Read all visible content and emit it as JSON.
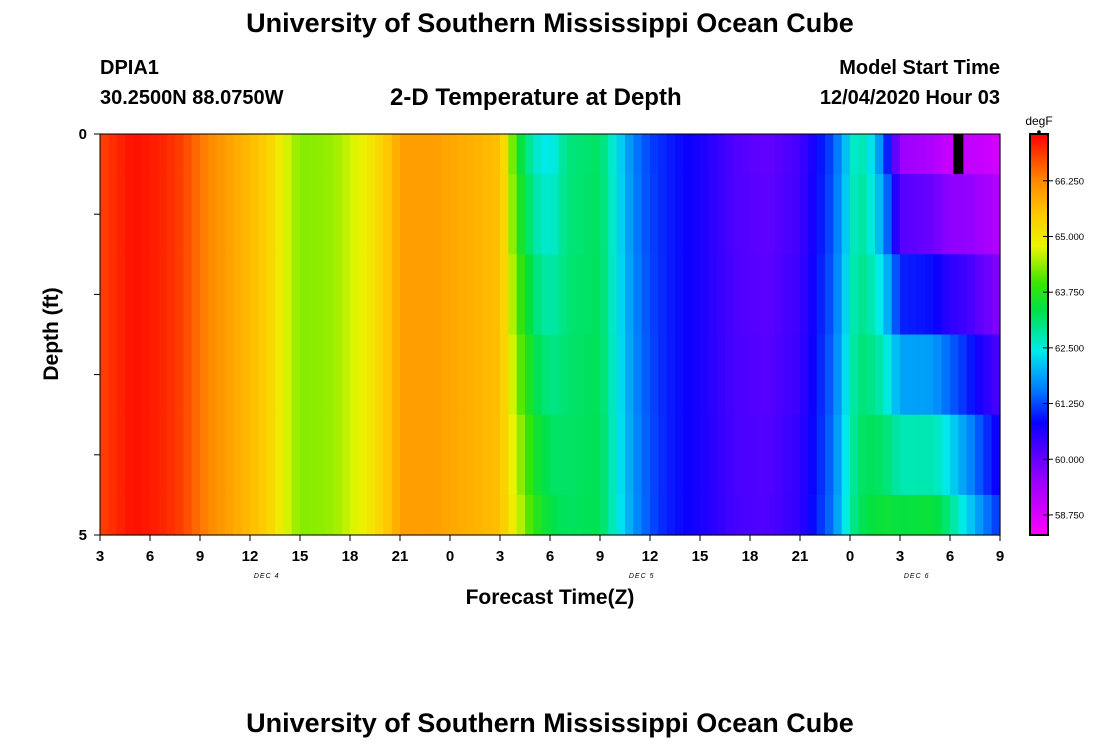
{
  "header": {
    "title": "University of Southern Mississippi Ocean Cube",
    "station_id": "DPIA1",
    "station_coords": "30.2500N 88.0750W",
    "plot_title": "2-D Temperature at Depth",
    "start_label": "Model Start Time",
    "start_value": "12/04/2020 Hour 03"
  },
  "footer": {
    "title": "University of Southern Mississippi Ocean Cube"
  },
  "chart_data": {
    "type": "heatmap",
    "title": "2-D Temperature at Depth",
    "xlabel": "Forecast Time(Z)",
    "ylabel": "Depth (ft)",
    "x_unit": "forecast hour from model start (12/04/2020 03Z)",
    "xlim": [
      0,
      54
    ],
    "ylim": [
      0,
      5
    ],
    "x_ticks": [
      {
        "hour": 0,
        "label": "3"
      },
      {
        "hour": 3,
        "label": "6"
      },
      {
        "hour": 6,
        "label": "9"
      },
      {
        "hour": 9,
        "label": "12"
      },
      {
        "hour": 12,
        "label": "15"
      },
      {
        "hour": 15,
        "label": "18"
      },
      {
        "hour": 18,
        "label": "21"
      },
      {
        "hour": 21,
        "label": "0"
      },
      {
        "hour": 24,
        "label": "3"
      },
      {
        "hour": 27,
        "label": "6"
      },
      {
        "hour": 30,
        "label": "9"
      },
      {
        "hour": 33,
        "label": "12"
      },
      {
        "hour": 36,
        "label": "15"
      },
      {
        "hour": 39,
        "label": "18"
      },
      {
        "hour": 42,
        "label": "21"
      },
      {
        "hour": 45,
        "label": "0"
      },
      {
        "hour": 48,
        "label": "3"
      },
      {
        "hour": 51,
        "label": "6"
      },
      {
        "hour": 54,
        "label": "9"
      }
    ],
    "date_labels": [
      {
        "hour": 10,
        "label": "DEC 4"
      },
      {
        "hour": 32.5,
        "label": "DEC 5"
      },
      {
        "hour": 49,
        "label": "DEC 6"
      }
    ],
    "y_ticks": [
      {
        "depth": 0,
        "label": "0"
      },
      {
        "depth": 1,
        "label": ""
      },
      {
        "depth": 2,
        "label": ""
      },
      {
        "depth": 3,
        "label": ""
      },
      {
        "depth": 4,
        "label": ""
      },
      {
        "depth": 5,
        "label": "5"
      }
    ],
    "colorbar": {
      "unit": "degF",
      "min": 58.3,
      "max": 67.3,
      "ticks": [
        66.25,
        65.0,
        63.75,
        62.5,
        61.25,
        60.0,
        58.75
      ],
      "tick_labels": [
        "66.250",
        "65.000",
        "63.750",
        "62.500",
        "61.250",
        "60.000",
        "58.750"
      ]
    },
    "depth_levels": [
      0,
      0.5,
      1.5,
      2.5,
      3.5,
      4.5,
      5
    ],
    "time_hours": [
      0,
      2,
      4,
      5,
      6,
      8,
      10,
      11,
      12,
      14,
      16,
      17.5,
      18,
      20,
      22,
      23,
      24,
      24.5,
      25,
      26,
      27,
      28,
      30,
      32,
      33,
      34,
      36,
      38,
      40,
      42,
      43,
      44,
      44.5,
      45,
      45.5,
      46,
      47,
      48,
      50,
      51,
      52,
      53,
      54
    ],
    "surface_temperature_degF": [
      66.8,
      67.2,
      67.0,
      66.8,
      66.4,
      65.9,
      65.4,
      64.8,
      64.3,
      64.4,
      64.9,
      65.6,
      66.0,
      66.0,
      65.8,
      65.7,
      65.6,
      64.8,
      63.6,
      62.6,
      62.3,
      63.0,
      63.2,
      61.6,
      61.2,
      61.0,
      60.7,
      60.2,
      60.0,
      60.3,
      60.8,
      61.3,
      61.8,
      62.4,
      62.8,
      62.6,
      61.4,
      59.3,
      59.0,
      58.7,
      58.9,
      58.8,
      58.7
    ],
    "bottom_temperature_degF": [
      66.8,
      67.2,
      67.0,
      66.8,
      66.4,
      65.9,
      65.4,
      64.8,
      64.3,
      64.4,
      64.9,
      65.6,
      66.0,
      66.0,
      65.8,
      65.7,
      65.6,
      65.2,
      64.8,
      63.9,
      63.4,
      63.2,
      63.3,
      61.8,
      61.3,
      61.0,
      60.7,
      60.3,
      60.2,
      60.5,
      61.0,
      61.6,
      62.2,
      62.8,
      63.2,
      63.4,
      63.6,
      63.6,
      63.7,
      63.2,
      62.5,
      61.8,
      61.2
    ],
    "masked_cell": {
      "hour_start": 51.2,
      "hour_end": 51.8,
      "depth_start": 0,
      "depth_end": 0.5
    }
  }
}
